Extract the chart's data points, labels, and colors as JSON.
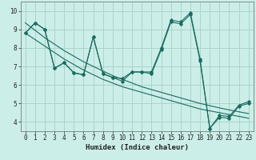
{
  "xlabel": "Humidex (Indice chaleur)",
  "background_color": "#cceee8",
  "line_color": "#1a6b60",
  "grid_color": "#aad4cc",
  "xlim": [
    -0.5,
    23.5
  ],
  "ylim": [
    3.5,
    10.5
  ],
  "yticks": [
    4,
    5,
    6,
    7,
    8,
    9,
    10
  ],
  "xticks": [
    0,
    1,
    2,
    3,
    4,
    5,
    6,
    7,
    8,
    9,
    10,
    11,
    12,
    13,
    14,
    15,
    16,
    17,
    18,
    19,
    20,
    21,
    22,
    23
  ],
  "series1": [
    8.8,
    9.35,
    9.0,
    6.9,
    7.2,
    6.65,
    6.55,
    8.6,
    6.6,
    6.4,
    6.35,
    6.7,
    6.7,
    6.7,
    8.0,
    9.5,
    9.4,
    9.9,
    7.4,
    3.65,
    4.35,
    4.3,
    4.9,
    5.1
  ],
  "series2": [
    8.8,
    9.35,
    9.0,
    6.9,
    7.2,
    6.65,
    6.55,
    8.6,
    6.6,
    6.4,
    6.2,
    6.7,
    6.7,
    6.6,
    7.9,
    9.4,
    9.3,
    9.8,
    7.3,
    3.65,
    4.25,
    4.2,
    4.85,
    5.0
  ],
  "trend1": [
    8.8,
    8.45,
    8.1,
    7.75,
    7.4,
    7.1,
    6.8,
    6.55,
    6.3,
    6.1,
    5.9,
    5.75,
    5.6,
    5.45,
    5.3,
    5.15,
    5.0,
    4.85,
    4.7,
    4.6,
    4.5,
    4.4,
    4.3,
    4.2
  ],
  "trend2": [
    9.35,
    8.95,
    8.55,
    8.2,
    7.85,
    7.55,
    7.25,
    7.0,
    6.75,
    6.5,
    6.3,
    6.1,
    5.9,
    5.75,
    5.6,
    5.45,
    5.3,
    5.15,
    5.0,
    4.88,
    4.76,
    4.65,
    4.55,
    4.45
  ]
}
